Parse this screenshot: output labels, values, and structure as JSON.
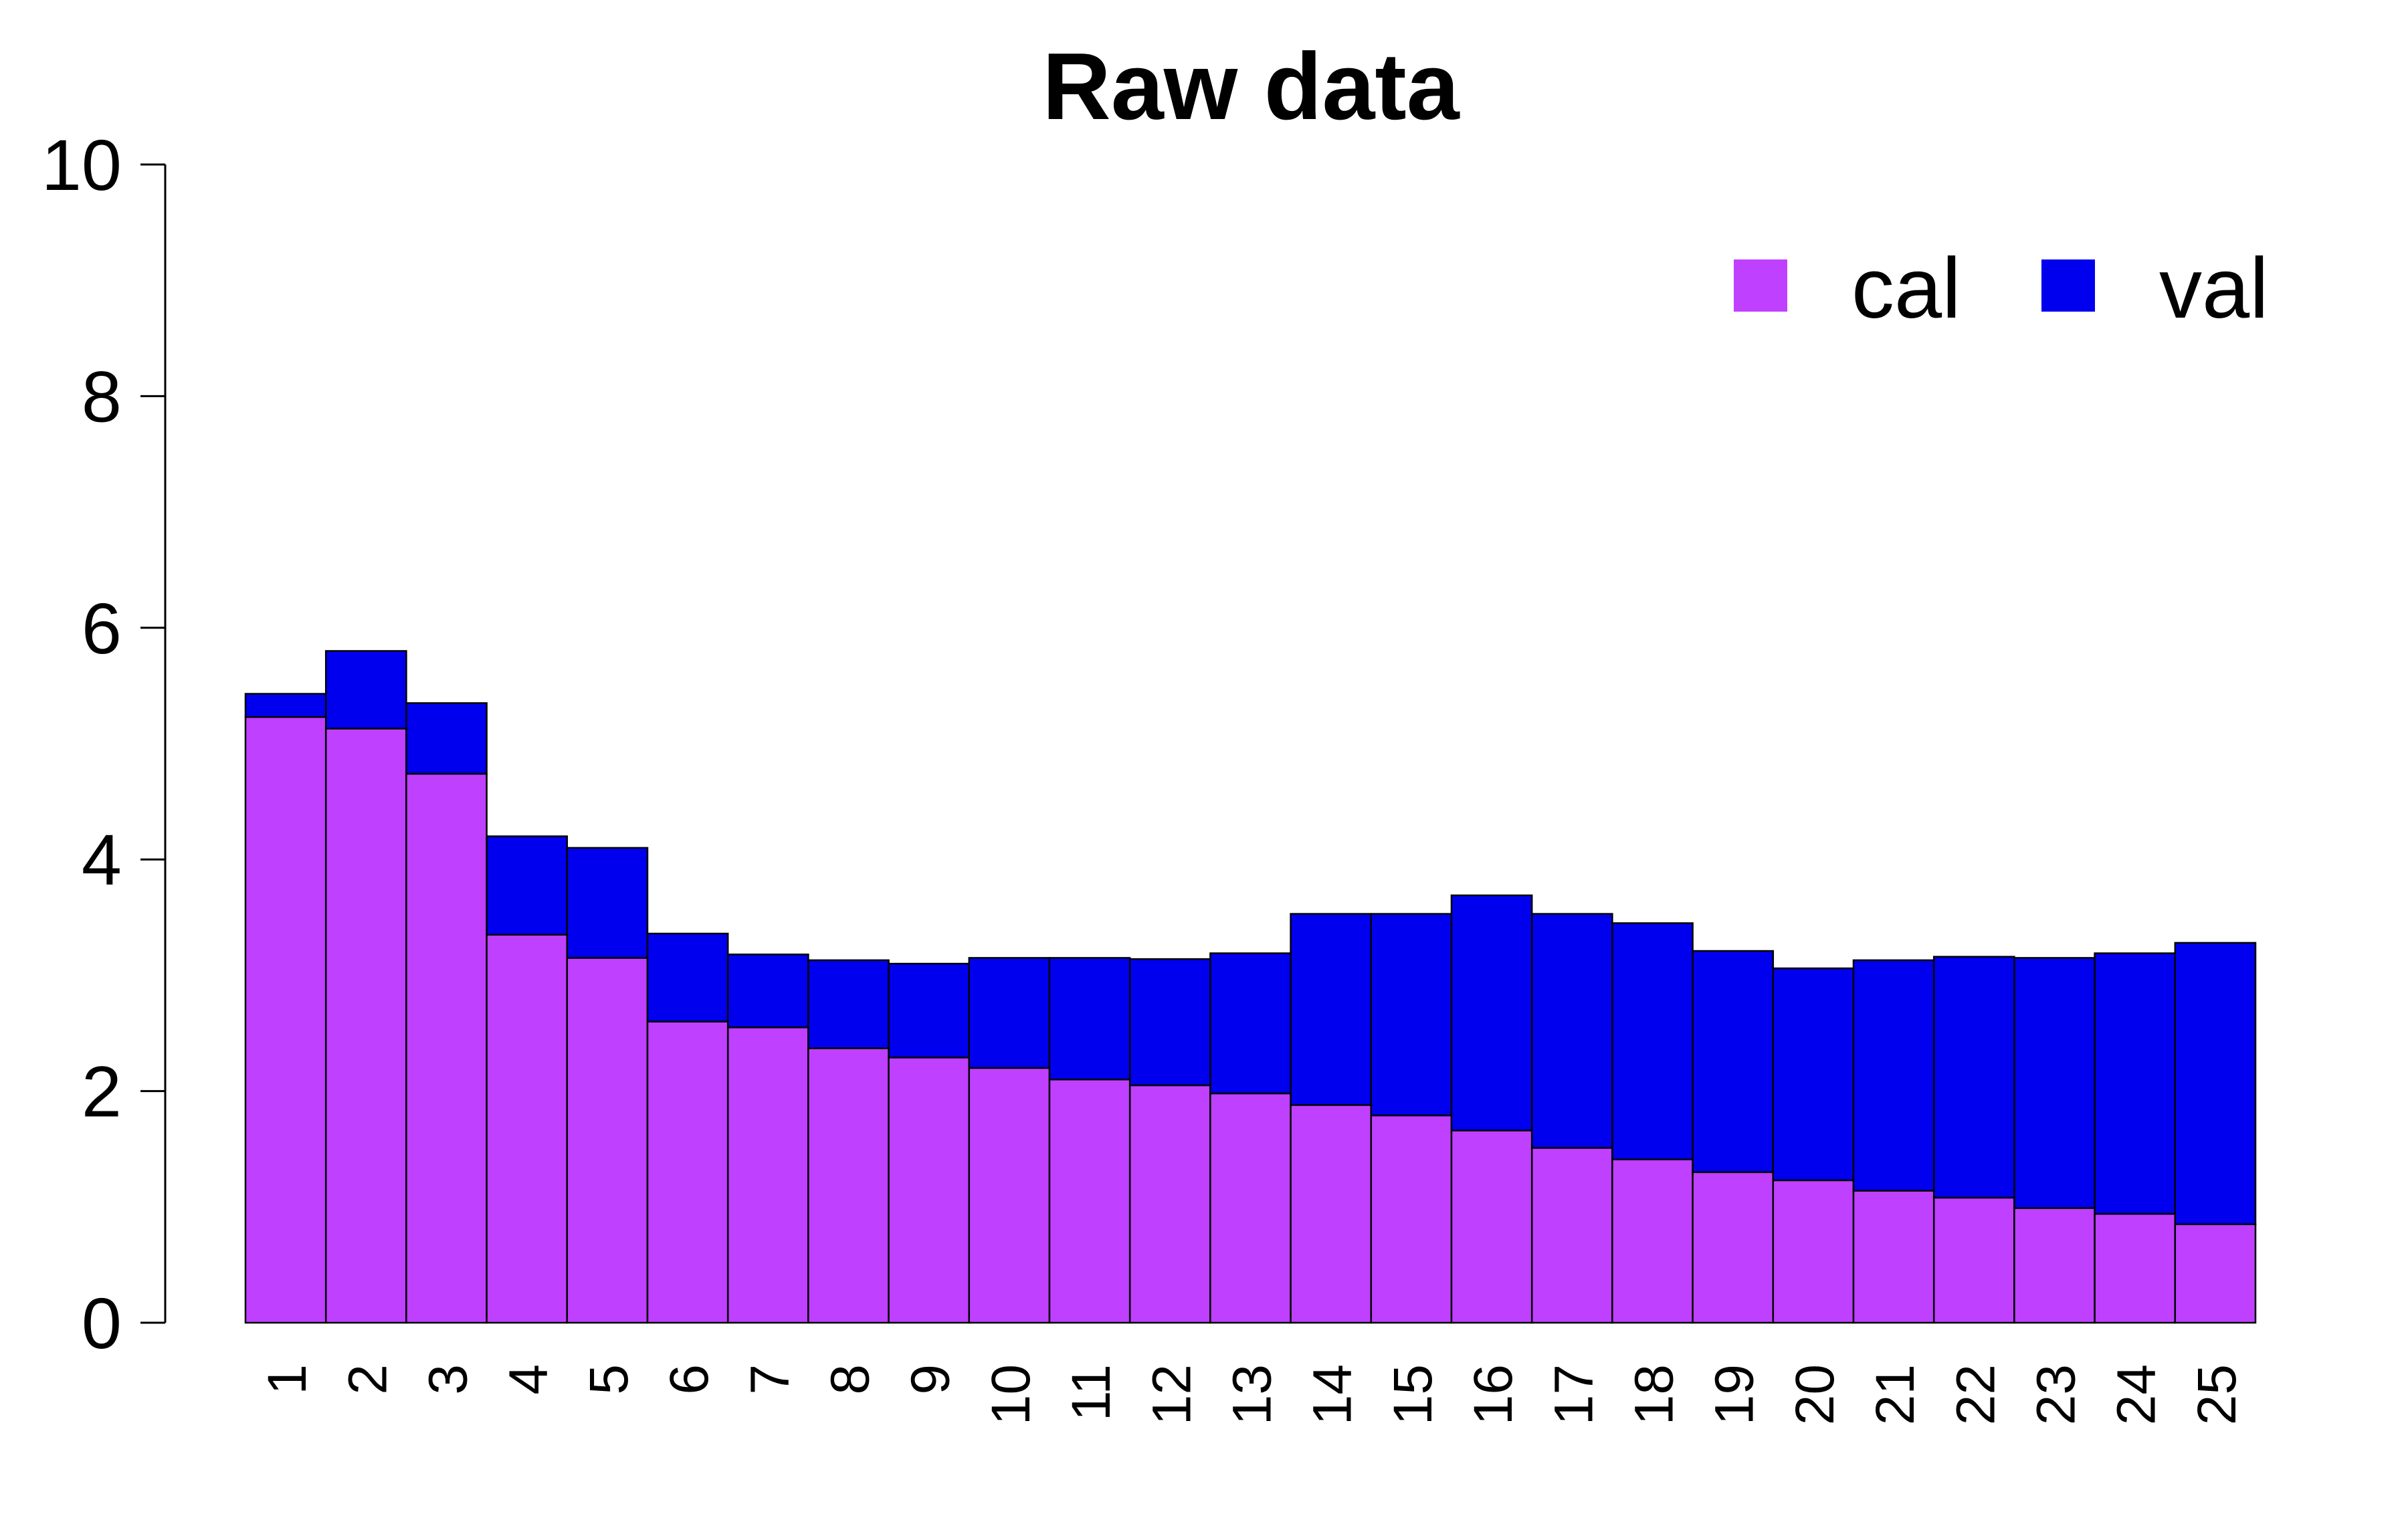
{
  "chart_data": {
    "type": "bar",
    "stacked": true,
    "title": "Raw data",
    "xlabel": "",
    "ylabel": "",
    "ylim": [
      0,
      10
    ],
    "y_ticks": [
      0,
      2,
      4,
      6,
      8,
      10
    ],
    "categories": [
      "1",
      "2",
      "3",
      "4",
      "5",
      "6",
      "7",
      "8",
      "9",
      "10",
      "11",
      "12",
      "13",
      "14",
      "15",
      "16",
      "17",
      "18",
      "19",
      "20",
      "21",
      "22",
      "23",
      "24",
      "25"
    ],
    "series": [
      {
        "name": "cal",
        "color": "#BF40FF",
        "values": [
          5.23,
          5.13,
          4.74,
          3.35,
          3.15,
          2.6,
          2.55,
          2.37,
          2.29,
          2.2,
          2.1,
          2.05,
          1.98,
          1.88,
          1.79,
          1.66,
          1.51,
          1.41,
          1.3,
          1.23,
          1.14,
          1.08,
          0.99,
          0.94,
          0.85
        ]
      },
      {
        "name": "val",
        "color": "#0000EE",
        "values": [
          0.2,
          0.67,
          0.61,
          0.85,
          0.95,
          0.76,
          0.63,
          0.76,
          0.81,
          0.95,
          1.05,
          1.09,
          1.21,
          1.65,
          1.74,
          2.03,
          2.02,
          2.04,
          1.91,
          1.83,
          1.99,
          2.08,
          2.16,
          2.25,
          2.43
        ]
      }
    ],
    "grid": false,
    "legend_position": "top-right"
  }
}
